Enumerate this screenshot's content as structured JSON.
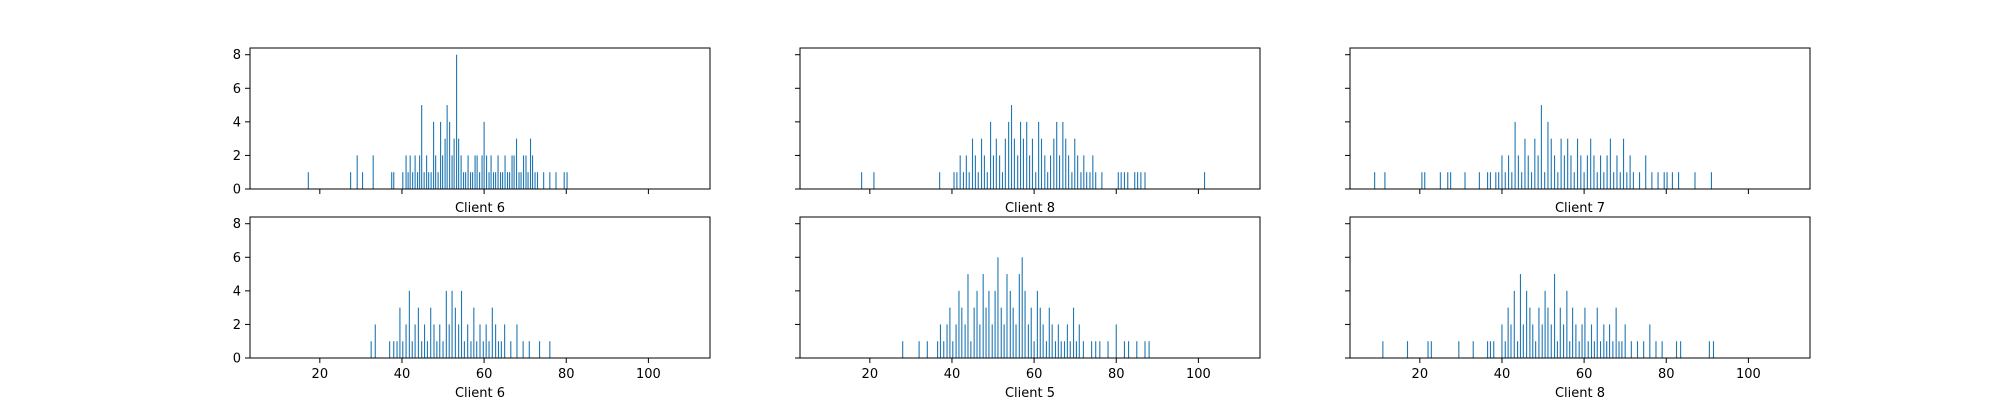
{
  "figure": {
    "background": "#ffffff",
    "bar_color": "#1f77b4"
  },
  "chart_data": [
    {
      "type": "bar",
      "xlabel": "Client 6",
      "xlim": [
        3,
        115
      ],
      "ylim": [
        0,
        8.4
      ],
      "xticks": [
        20,
        40,
        60,
        80,
        100
      ],
      "yticks": [
        0,
        2,
        4,
        6,
        8
      ],
      "show_xtick_labels": false,
      "show_ytick_labels": true,
      "grid": false,
      "x": [
        17.2,
        27.5,
        29.1,
        30.4,
        33.0,
        37.5,
        38.0,
        40.2,
        41.0,
        41.5,
        42.0,
        42.6,
        43.2,
        43.8,
        44.3,
        44.8,
        45.4,
        46.0,
        46.5,
        47.1,
        47.7,
        48.2,
        48.8,
        49.4,
        49.9,
        50.5,
        51.0,
        51.6,
        52.2,
        52.7,
        53.3,
        53.8,
        54.4,
        55.0,
        55.5,
        56.1,
        56.7,
        57.2,
        57.8,
        58.3,
        58.9,
        59.5,
        60.0,
        60.6,
        61.2,
        61.7,
        62.3,
        62.8,
        63.4,
        64.0,
        64.5,
        65.1,
        65.7,
        66.2,
        66.8,
        67.3,
        67.9,
        68.5,
        69.0,
        69.6,
        70.2,
        70.7,
        71.3,
        71.8,
        72.4,
        73.0,
        74.5,
        76.0,
        77.5,
        79.5,
        80.2
      ],
      "values": [
        1,
        1,
        2,
        1,
        2,
        1,
        1,
        1,
        2,
        1,
        2,
        1,
        2,
        1,
        2,
        5,
        1,
        2,
        1,
        1,
        4,
        2,
        1,
        4,
        2,
        3,
        5,
        4,
        2,
        3,
        8,
        3,
        2,
        1,
        1,
        2,
        1,
        1,
        2,
        2,
        1,
        2,
        4,
        2,
        1,
        2,
        1,
        1,
        2,
        1,
        1,
        2,
        1,
        1,
        2,
        2,
        3,
        1,
        1,
        2,
        2,
        1,
        3,
        2,
        1,
        1,
        1,
        1,
        1,
        1,
        1
      ]
    },
    {
      "type": "bar",
      "xlabel": "Client 8",
      "xlim": [
        3,
        115
      ],
      "ylim": [
        0,
        8.4
      ],
      "xticks": [
        20,
        40,
        60,
        80,
        100
      ],
      "yticks": [
        0,
        2,
        4,
        6,
        8
      ],
      "show_xtick_labels": false,
      "show_ytick_labels": false,
      "grid": false,
      "x": [
        18.0,
        21.0,
        37.0,
        40.5,
        41.2,
        42.0,
        42.8,
        43.5,
        44.2,
        45.0,
        45.7,
        46.4,
        47.2,
        47.9,
        48.6,
        49.4,
        50.1,
        50.8,
        51.6,
        52.3,
        53.0,
        53.8,
        54.5,
        55.2,
        56.0,
        56.7,
        57.4,
        58.2,
        58.9,
        59.6,
        60.4,
        61.1,
        61.8,
        62.6,
        63.3,
        64.0,
        64.8,
        65.5,
        66.2,
        67.0,
        67.7,
        68.4,
        69.2,
        69.9,
        70.6,
        71.4,
        72.1,
        72.8,
        73.6,
        74.3,
        75.0,
        76.5,
        80.5,
        81.2,
        82.0,
        82.8,
        84.5,
        85.2,
        86.0,
        87.0,
        101.5
      ],
      "values": [
        1,
        1,
        1,
        1,
        1,
        2,
        1,
        2,
        1,
        3,
        2,
        1,
        3,
        2,
        1,
        4,
        2,
        3,
        2,
        1,
        3,
        4,
        5,
        3,
        2,
        4,
        3,
        4,
        2,
        3,
        1,
        4,
        3,
        2,
        1,
        2,
        3,
        4,
        2,
        4,
        3,
        2,
        1,
        3,
        2,
        1,
        2,
        1,
        1,
        2,
        1,
        1,
        1,
        1,
        1,
        1,
        1,
        1,
        1,
        1,
        1
      ]
    },
    {
      "type": "bar",
      "xlabel": "Client 7",
      "xlim": [
        3,
        115
      ],
      "ylim": [
        0,
        8.4
      ],
      "xticks": [
        20,
        40,
        60,
        80,
        100
      ],
      "yticks": [
        0,
        2,
        4,
        6,
        8
      ],
      "show_xtick_labels": false,
      "show_ytick_labels": false,
      "grid": false,
      "x": [
        9.0,
        11.5,
        20.5,
        21.2,
        25.0,
        26.8,
        27.5,
        31.0,
        34.5,
        36.5,
        37.2,
        38.5,
        39.2,
        40.0,
        40.8,
        41.6,
        42.4,
        43.2,
        44.0,
        44.8,
        45.6,
        46.4,
        47.2,
        48.0,
        48.8,
        49.6,
        50.4,
        51.2,
        52.0,
        52.8,
        53.6,
        54.4,
        55.2,
        56.0,
        56.8,
        57.6,
        58.4,
        59.2,
        60.0,
        60.8,
        61.6,
        62.4,
        63.2,
        64.0,
        64.8,
        65.6,
        66.4,
        67.2,
        68.0,
        68.8,
        69.6,
        70.4,
        71.2,
        72.0,
        73.5,
        75.0,
        76.5,
        78.0,
        79.5,
        80.2,
        81.5,
        83.0,
        87.0,
        91.0
      ],
      "values": [
        1,
        1,
        1,
        1,
        1,
        1,
        1,
        1,
        1,
        1,
        1,
        1,
        1,
        2,
        1,
        2,
        1,
        4,
        2,
        1,
        3,
        2,
        1,
        3,
        2,
        5,
        1,
        4,
        3,
        2,
        1,
        3,
        2,
        3,
        2,
        1,
        3,
        2,
        1,
        2,
        3,
        2,
        1,
        2,
        1,
        2,
        3,
        1,
        2,
        1,
        3,
        1,
        2,
        1,
        1,
        2,
        1,
        1,
        1,
        1,
        1,
        1,
        1,
        1
      ]
    },
    {
      "type": "bar",
      "xlabel": "Client 6",
      "xlim": [
        3,
        115
      ],
      "ylim": [
        0,
        8.4
      ],
      "xticks": [
        20,
        40,
        60,
        80,
        100
      ],
      "yticks": [
        0,
        2,
        4,
        6,
        8
      ],
      "show_xtick_labels": true,
      "show_ytick_labels": true,
      "grid": false,
      "x": [
        32.5,
        33.5,
        37.0,
        38.0,
        38.8,
        39.5,
        40.2,
        41.0,
        41.8,
        42.5,
        43.2,
        44.0,
        44.8,
        45.5,
        46.2,
        47.0,
        47.8,
        48.5,
        49.2,
        50.0,
        50.8,
        51.5,
        52.2,
        53.0,
        53.8,
        54.5,
        55.2,
        56.0,
        56.8,
        57.5,
        58.2,
        59.0,
        59.8,
        60.5,
        61.2,
        62.0,
        62.8,
        63.5,
        64.2,
        65.0,
        66.5,
        68.0,
        69.5,
        71.0,
        73.5,
        76.0
      ],
      "values": [
        1,
        2,
        1,
        1,
        1,
        3,
        1,
        2,
        4,
        1,
        2,
        3,
        1,
        2,
        1,
        3,
        2,
        1,
        2,
        1,
        4,
        2,
        4,
        3,
        2,
        4,
        1,
        2,
        1,
        3,
        1,
        2,
        1,
        2,
        1,
        3,
        2,
        1,
        1,
        2,
        1,
        2,
        1,
        1,
        1,
        1
      ]
    },
    {
      "type": "bar",
      "xlabel": "Client 5",
      "xlim": [
        3,
        115
      ],
      "ylim": [
        0,
        8.4
      ],
      "xticks": [
        20,
        40,
        60,
        80,
        100
      ],
      "yticks": [
        0,
        2,
        4,
        6,
        8
      ],
      "show_xtick_labels": true,
      "show_ytick_labels": false,
      "grid": false,
      "x": [
        28.0,
        32.0,
        34.0,
        36.5,
        37.2,
        38.0,
        38.8,
        39.5,
        40.2,
        41.0,
        41.7,
        42.4,
        43.2,
        43.9,
        44.6,
        45.4,
        46.1,
        46.8,
        47.6,
        48.3,
        49.0,
        49.8,
        50.5,
        51.2,
        52.0,
        52.7,
        53.4,
        54.2,
        54.9,
        55.6,
        56.4,
        57.1,
        57.8,
        58.6,
        59.3,
        60.0,
        60.8,
        61.5,
        62.2,
        63.0,
        63.7,
        64.4,
        65.2,
        65.9,
        66.6,
        67.4,
        68.1,
        68.8,
        69.6,
        70.3,
        71.0,
        72.0,
        74.0,
        75.0,
        76.0,
        78.0,
        80.0,
        82.0,
        83.0,
        85.0,
        87.0,
        88.0
      ],
      "values": [
        1,
        1,
        1,
        1,
        2,
        1,
        2,
        3,
        1,
        2,
        4,
        3,
        2,
        5,
        1,
        3,
        4,
        2,
        5,
        3,
        4,
        2,
        4,
        6,
        3,
        2,
        5,
        4,
        3,
        2,
        5,
        6,
        4,
        2,
        3,
        1,
        4,
        3,
        2,
        1,
        3,
        2,
        1,
        2,
        1,
        1,
        2,
        1,
        3,
        1,
        2,
        1,
        1,
        1,
        1,
        1,
        2,
        1,
        1,
        1,
        1,
        1
      ]
    },
    {
      "type": "bar",
      "xlabel": "Client 8",
      "xlim": [
        3,
        115
      ],
      "ylim": [
        0,
        8.4
      ],
      "xticks": [
        20,
        40,
        60,
        80,
        100
      ],
      "yticks": [
        0,
        2,
        4,
        6,
        8
      ],
      "show_xtick_labels": true,
      "show_ytick_labels": false,
      "grid": false,
      "x": [
        11.0,
        17.0,
        22.0,
        22.8,
        29.5,
        33.0,
        36.5,
        37.2,
        38.0,
        40.0,
        40.8,
        41.5,
        42.2,
        43.0,
        43.8,
        44.5,
        45.2,
        46.0,
        46.8,
        47.5,
        48.2,
        49.0,
        49.8,
        50.5,
        51.2,
        52.0,
        52.8,
        53.5,
        54.2,
        55.0,
        55.8,
        56.5,
        57.2,
        58.0,
        58.8,
        59.5,
        60.2,
        61.0,
        61.8,
        62.5,
        63.2,
        64.0,
        64.8,
        65.5,
        66.2,
        67.0,
        67.8,
        68.5,
        69.2,
        70.0,
        71.5,
        73.0,
        74.5,
        76.0,
        77.5,
        79.0,
        82.5,
        83.5,
        90.5,
        91.5
      ],
      "values": [
        1,
        1,
        1,
        1,
        1,
        1,
        1,
        1,
        1,
        2,
        1,
        3,
        2,
        4,
        1,
        5,
        2,
        4,
        3,
        2,
        1,
        3,
        2,
        4,
        3,
        2,
        5,
        1,
        3,
        2,
        4,
        1,
        3,
        2,
        1,
        2,
        3,
        1,
        2,
        1,
        3,
        1,
        2,
        1,
        2,
        1,
        3,
        1,
        1,
        2,
        1,
        1,
        1,
        2,
        1,
        1,
        1,
        1,
        1,
        1
      ]
    }
  ]
}
